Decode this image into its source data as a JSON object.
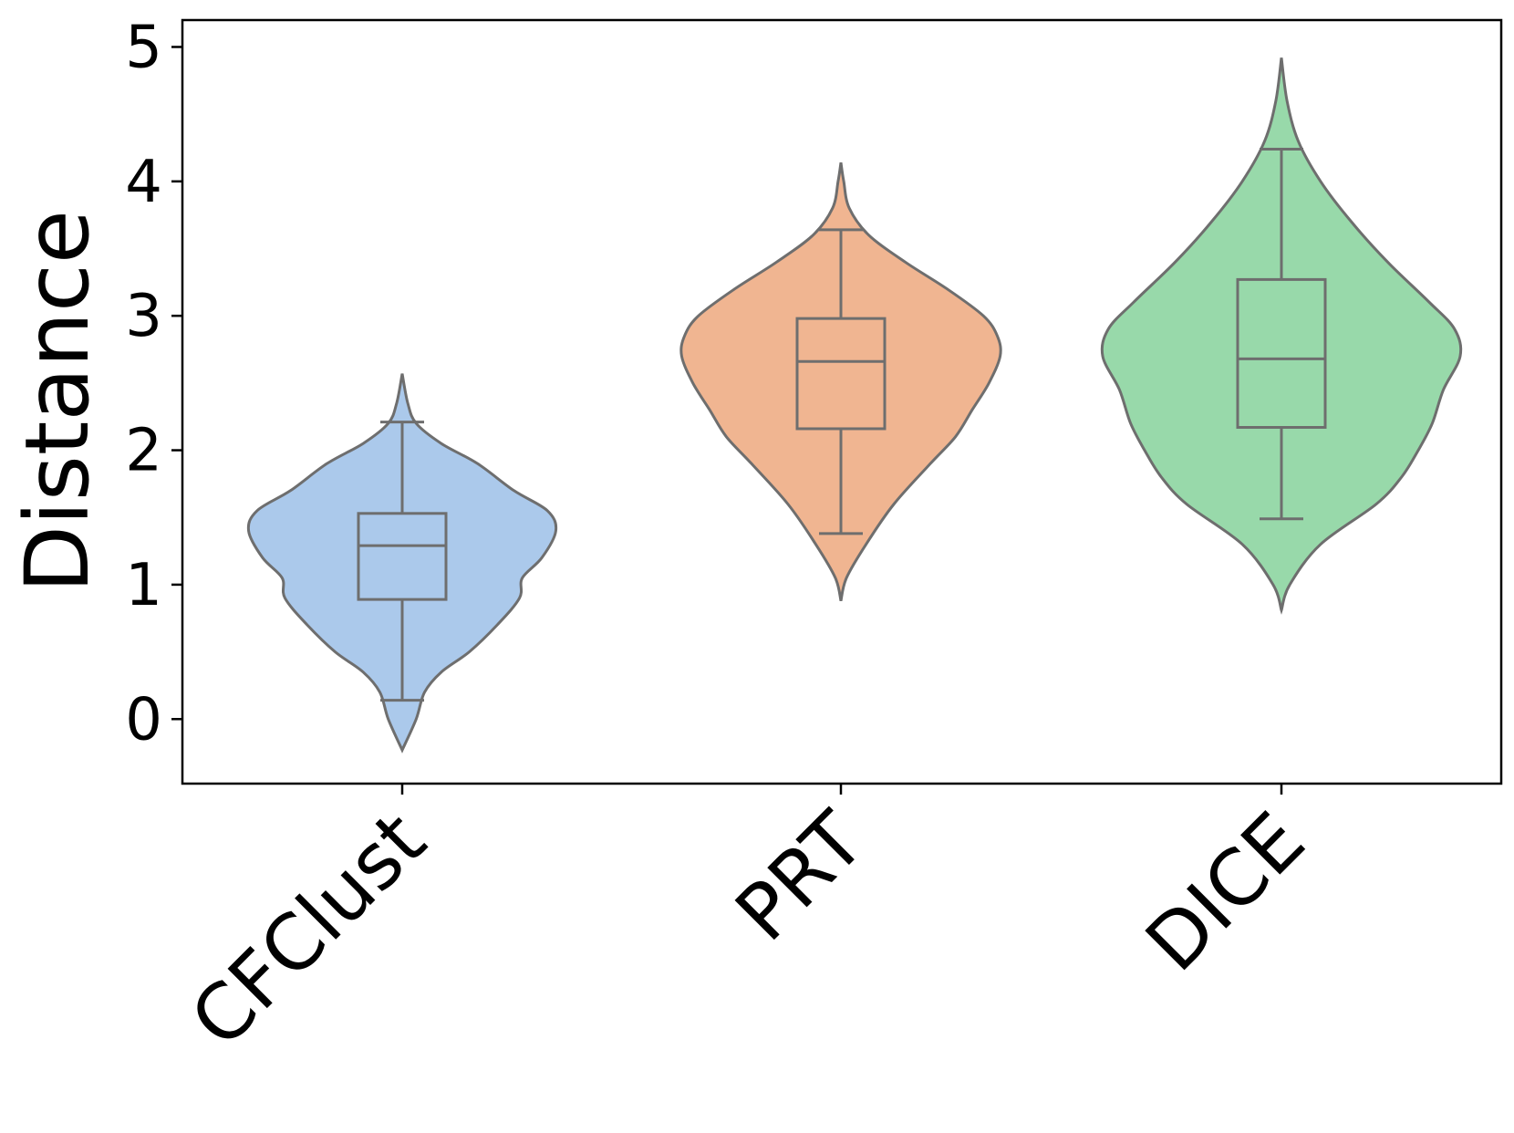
{
  "chart_data": {
    "type": "violin",
    "ylabel": "Distance",
    "xlabel": "",
    "ylim": [
      -0.48,
      5.2
    ],
    "yticks": [
      0,
      1,
      2,
      3,
      4,
      5
    ],
    "grid": false,
    "categories": [
      "CFClust",
      "PRT",
      "DICE"
    ],
    "series": [
      {
        "category": "CFClust",
        "color": "#abc9eb",
        "range": [
          -0.23,
          2.57
        ],
        "whisker_low": 0.14,
        "q1": 0.89,
        "median": 1.29,
        "q3": 1.53,
        "whisker_high": 2.21,
        "density": [
          [
            -0.23,
            0.0
          ],
          [
            0.0,
            0.05
          ],
          [
            0.2,
            0.08
          ],
          [
            0.35,
            0.14
          ],
          [
            0.5,
            0.24
          ],
          [
            0.7,
            0.34
          ],
          [
            0.9,
            0.42
          ],
          [
            1.05,
            0.43
          ],
          [
            1.2,
            0.5
          ],
          [
            1.4,
            0.55
          ],
          [
            1.55,
            0.52
          ],
          [
            1.7,
            0.4
          ],
          [
            1.9,
            0.27
          ],
          [
            2.05,
            0.14
          ],
          [
            2.2,
            0.05
          ],
          [
            2.35,
            0.02
          ],
          [
            2.57,
            0.0
          ]
        ]
      },
      {
        "category": "PRT",
        "color": "#f0b591",
        "range": [
          0.88,
          4.14
        ],
        "whisker_low": 1.38,
        "q1": 2.16,
        "median": 2.66,
        "q3": 2.98,
        "whisker_high": 3.64,
        "density": [
          [
            0.88,
            0.0
          ],
          [
            1.05,
            0.02
          ],
          [
            1.3,
            0.09
          ],
          [
            1.6,
            0.19
          ],
          [
            1.9,
            0.32
          ],
          [
            2.1,
            0.41
          ],
          [
            2.3,
            0.47
          ],
          [
            2.5,
            0.53
          ],
          [
            2.7,
            0.57
          ],
          [
            2.85,
            0.56
          ],
          [
            3.0,
            0.51
          ],
          [
            3.2,
            0.38
          ],
          [
            3.4,
            0.23
          ],
          [
            3.6,
            0.1
          ],
          [
            3.8,
            0.03
          ],
          [
            4.0,
            0.01
          ],
          [
            4.14,
            0.0
          ]
        ]
      },
      {
        "category": "DICE",
        "color": "#98d9aa",
        "range": [
          0.81,
          4.92
        ],
        "whisker_low": 1.49,
        "q1": 2.17,
        "median": 2.68,
        "q3": 3.27,
        "whisker_high": 4.24,
        "density": [
          [
            0.81,
            0.0
          ],
          [
            1.0,
            0.03
          ],
          [
            1.3,
            0.14
          ],
          [
            1.6,
            0.34
          ],
          [
            1.8,
            0.43
          ],
          [
            2.0,
            0.49
          ],
          [
            2.2,
            0.54
          ],
          [
            2.45,
            0.58
          ],
          [
            2.7,
            0.64
          ],
          [
            2.9,
            0.62
          ],
          [
            3.1,
            0.53
          ],
          [
            3.4,
            0.38
          ],
          [
            3.7,
            0.25
          ],
          [
            4.0,
            0.14
          ],
          [
            4.3,
            0.06
          ],
          [
            4.6,
            0.02
          ],
          [
            4.92,
            0.0
          ]
        ]
      }
    ]
  }
}
